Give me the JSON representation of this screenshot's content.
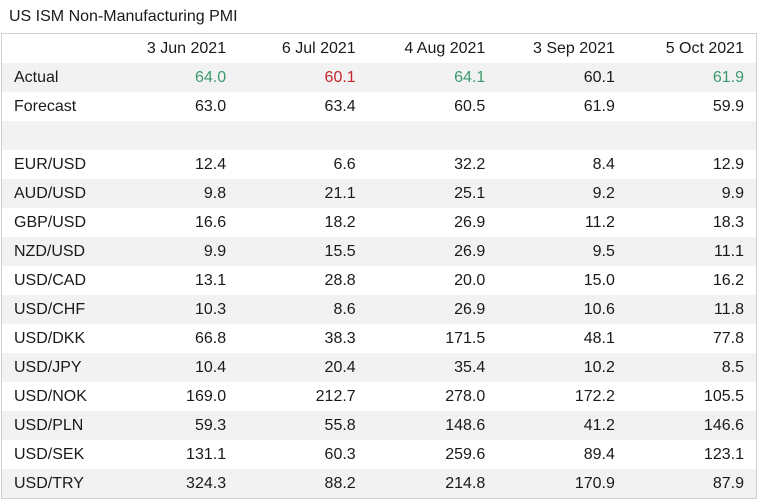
{
  "title": "US ISM Non-Manufacturing PMI",
  "columns": [
    "3 Jun 2021",
    "6 Jul 2021",
    "4 Aug 2021",
    "3 Sep 2021",
    "5 Oct 2021"
  ],
  "colors": {
    "positive": "#3d9a6e",
    "negative": "#c3272b",
    "row_stripe": "#f2f2f2"
  },
  "rows": [
    {
      "label": "Actual",
      "values": [
        "64.0",
        "60.1",
        "64.1",
        "60.1",
        "61.9"
      ],
      "tones": [
        "pos",
        "neg",
        "pos",
        "",
        "pos"
      ]
    },
    {
      "label": "Forecast",
      "values": [
        "63.0",
        "63.4",
        "60.5",
        "61.9",
        "59.9"
      ]
    },
    {
      "label": "",
      "values": [
        "",
        "",
        "",
        "",
        ""
      ]
    },
    {
      "label": "EUR/USD",
      "values": [
        "12.4",
        "6.6",
        "32.2",
        "8.4",
        "12.9"
      ]
    },
    {
      "label": "AUD/USD",
      "values": [
        "9.8",
        "21.1",
        "25.1",
        "9.2",
        "9.9"
      ]
    },
    {
      "label": "GBP/USD",
      "values": [
        "16.6",
        "18.2",
        "26.9",
        "11.2",
        "18.3"
      ]
    },
    {
      "label": "NZD/USD",
      "values": [
        "9.9",
        "15.5",
        "26.9",
        "9.5",
        "11.1"
      ]
    },
    {
      "label": "USD/CAD",
      "values": [
        "13.1",
        "28.8",
        "20.0",
        "15.0",
        "16.2"
      ]
    },
    {
      "label": "USD/CHF",
      "values": [
        "10.3",
        "8.6",
        "26.9",
        "10.6",
        "11.8"
      ]
    },
    {
      "label": "USD/DKK",
      "values": [
        "66.8",
        "38.3",
        "171.5",
        "48.1",
        "77.8"
      ]
    },
    {
      "label": "USD/JPY",
      "values": [
        "10.4",
        "20.4",
        "35.4",
        "10.2",
        "8.5"
      ]
    },
    {
      "label": "USD/NOK",
      "values": [
        "169.0",
        "212.7",
        "278.0",
        "172.2",
        "105.5"
      ]
    },
    {
      "label": "USD/PLN",
      "values": [
        "59.3",
        "55.8",
        "148.6",
        "41.2",
        "146.6"
      ]
    },
    {
      "label": "USD/SEK",
      "values": [
        "131.1",
        "60.3",
        "259.6",
        "89.4",
        "123.1"
      ]
    },
    {
      "label": "USD/TRY",
      "values": [
        "324.3",
        "88.2",
        "214.8",
        "170.9",
        "87.9"
      ]
    }
  ]
}
